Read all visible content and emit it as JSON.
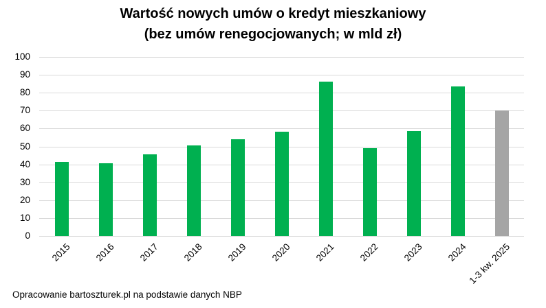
{
  "chart_data": {
    "type": "bar",
    "title": "Wartość nowych umów o kredyt mieszkaniowy",
    "subtitle": "(bez umów renegocjowanych; w mld zł)",
    "categories": [
      "2015",
      "2016",
      "2017",
      "2018",
      "2019",
      "2020",
      "2021",
      "2022",
      "2023",
      "2024",
      "1-3 kw. 2025"
    ],
    "values": [
      41.3,
      40.8,
      45.5,
      50.4,
      53.9,
      58.1,
      86.3,
      48.9,
      58.5,
      83.6,
      70.2
    ],
    "colors": [
      "#00B050",
      "#00B050",
      "#00B050",
      "#00B050",
      "#00B050",
      "#00B050",
      "#00B050",
      "#00B050",
      "#00B050",
      "#00B050",
      "#A5A5A5"
    ],
    "xlabel": "",
    "ylabel": "",
    "ylim": [
      0,
      100
    ],
    "yticks": [
      0,
      10,
      20,
      30,
      40,
      50,
      60,
      70,
      80,
      90,
      100
    ],
    "grid": true,
    "legend": "none",
    "source": "Opracowanie bartoszturek.pl na podstawie danych NBP"
  },
  "header": {
    "title_line1": "Wartość nowych umów o kredyt mieszkaniowy",
    "title_line2": "(bez umów renegocjowanych; w mld zł)"
  },
  "footer": {
    "source": "Opracowanie bartoszturek.pl na podstawie danych NBP"
  }
}
